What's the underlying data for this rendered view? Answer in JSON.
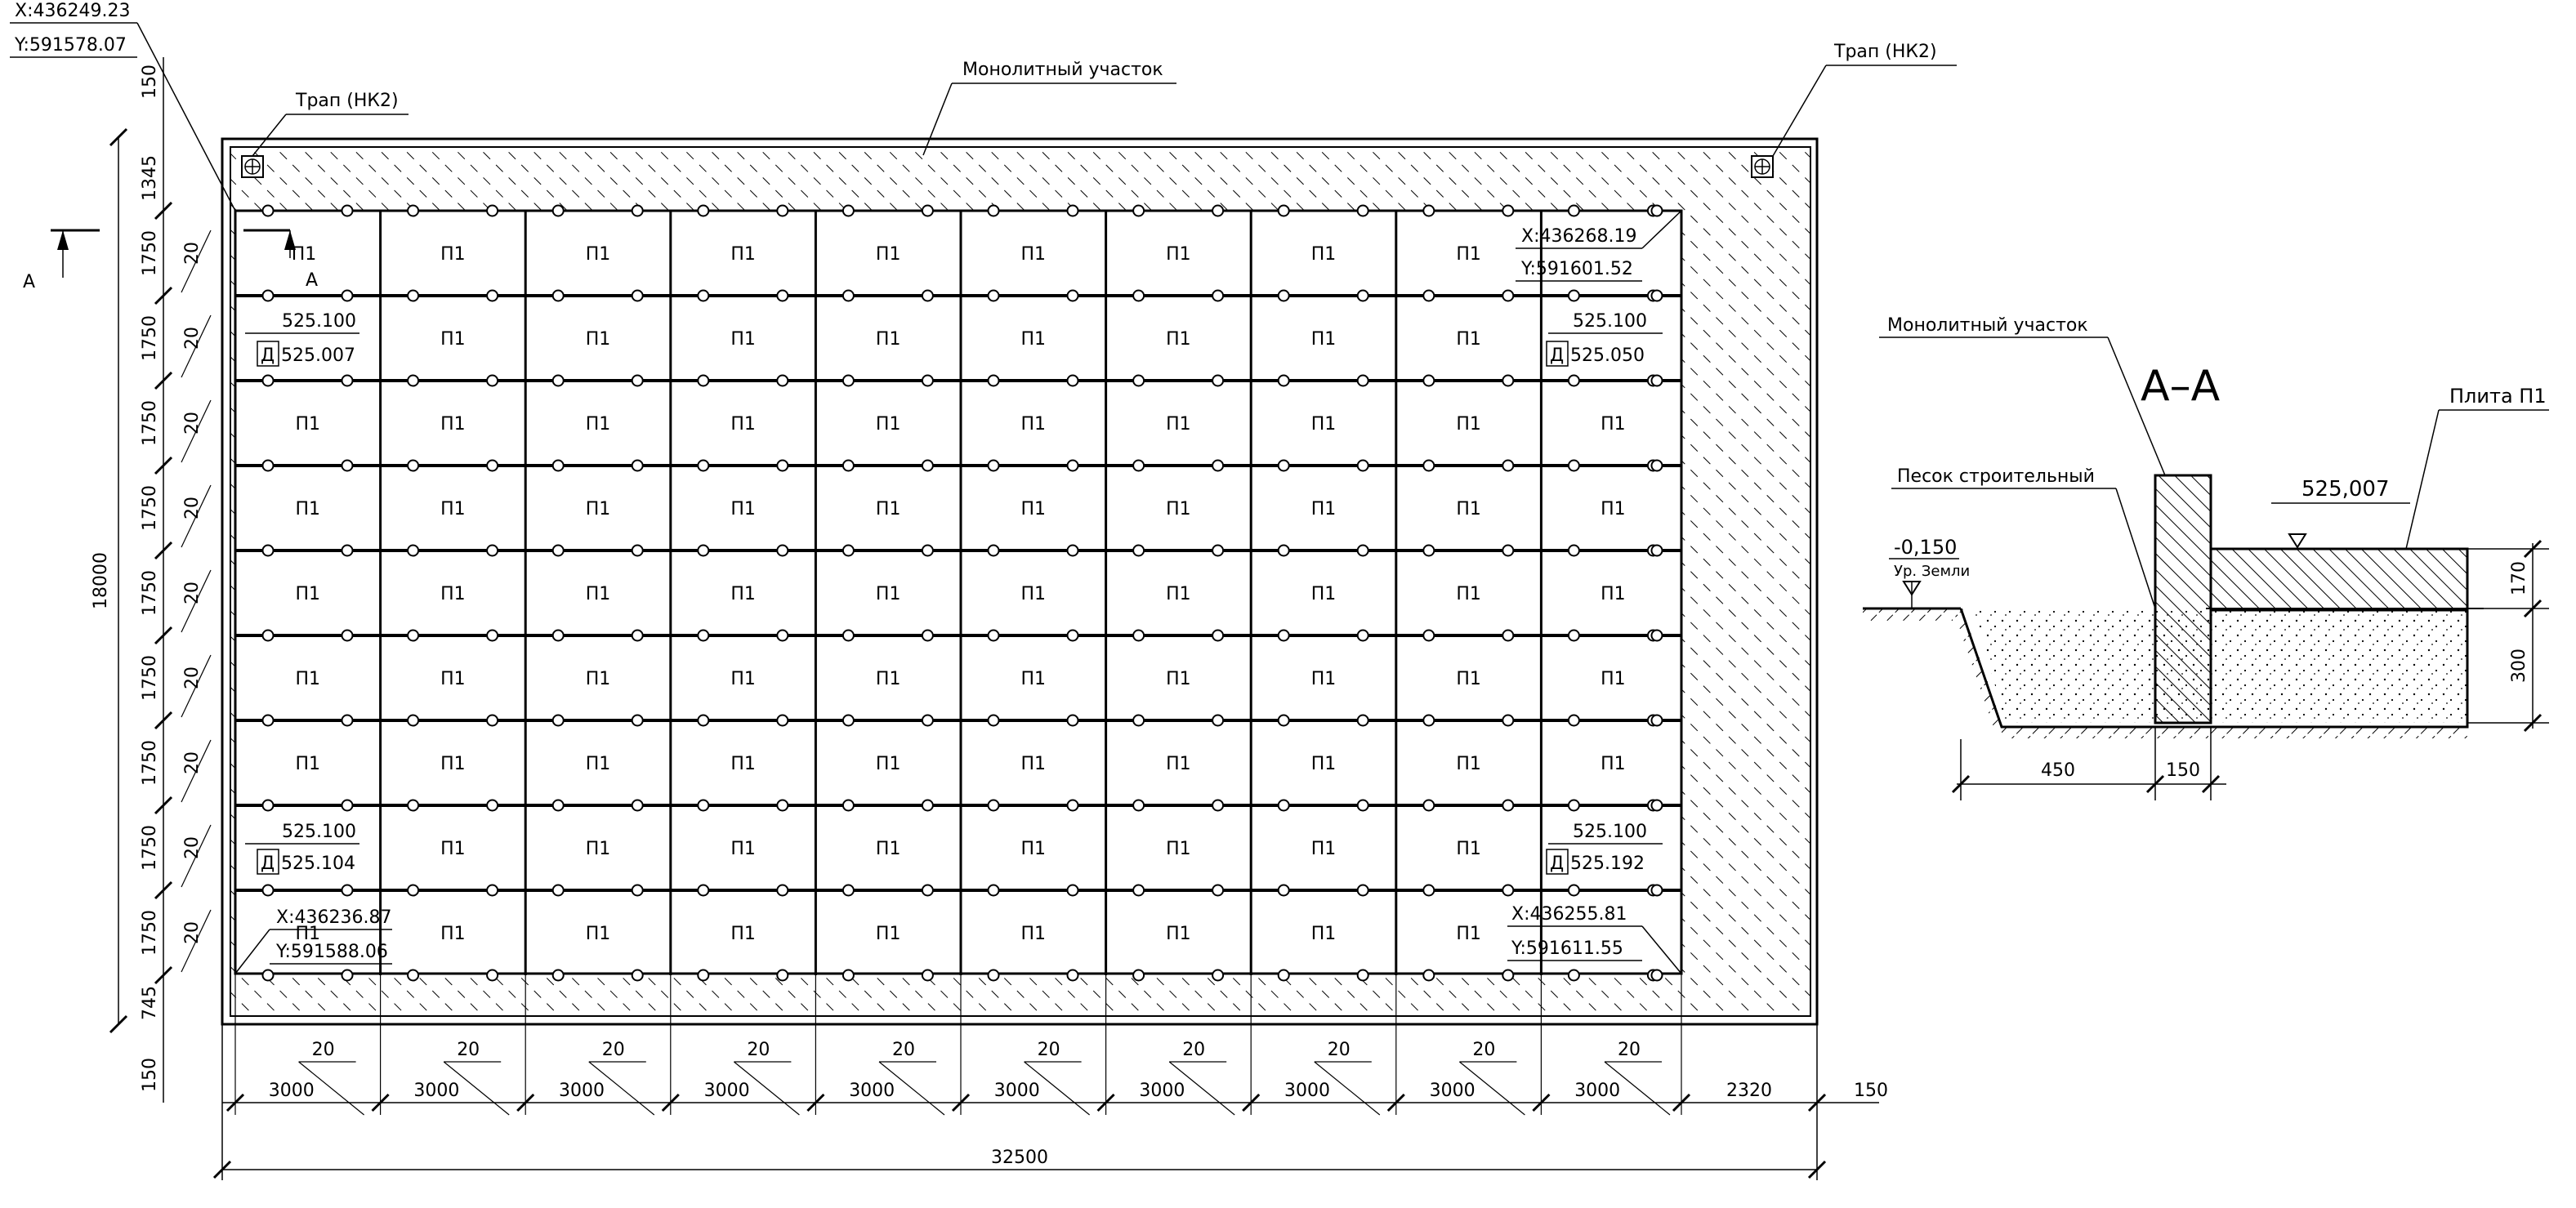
{
  "plan": {
    "corner_top_left": {
      "x": "X:436249.23",
      "y": "Y:591578.07"
    },
    "corner_top_right": {
      "x": "X:436268.19",
      "y": "Y:591601.52"
    },
    "corner_bottom_left": {
      "x": "X:436236.87",
      "y": "Y:591588.06"
    },
    "corner_bottom_right": {
      "x": "X:436255.81",
      "y": "Y:591611.55"
    },
    "drain_label_left": "Трап (НК2)",
    "drain_label_right": "Трап (НК2)",
    "monolith_label": "Монолитный участок",
    "slab_label": "П1",
    "section_marker": "A",
    "elevations": {
      "top_left": {
        "design": "525.100",
        "existing": "525.007",
        "prefix": "Д"
      },
      "top_right": {
        "design": "525.100",
        "existing": "525.050",
        "prefix": "Д"
      },
      "bottom_left": {
        "design": "525.100",
        "existing": "525.104",
        "prefix": "Д"
      },
      "bottom_right": {
        "design": "525.100",
        "existing": "525.192",
        "prefix": "Д"
      }
    },
    "dimensions": {
      "left_top_150": "150",
      "left_1345": "1345",
      "left_rows": "1750",
      "left_745": "745",
      "left_bottom_150": "150",
      "left_total": "18000",
      "joint": "20",
      "bottom_cols": "3000",
      "bottom_last": "2320",
      "bottom_right_150": "150",
      "bottom_total": "32500"
    }
  },
  "section": {
    "title": "A–A",
    "monolith_label": "Монолитный участок",
    "sand_label": "Песок строительный",
    "slab_label": "Плита П1",
    "ground_level": "-0,150",
    "ground_level_label": "Ур. Земли",
    "slab_elevation": "525,007",
    "dim_450": "450",
    "dim_150": "150",
    "dim_170": "170",
    "dim_300": "300"
  }
}
